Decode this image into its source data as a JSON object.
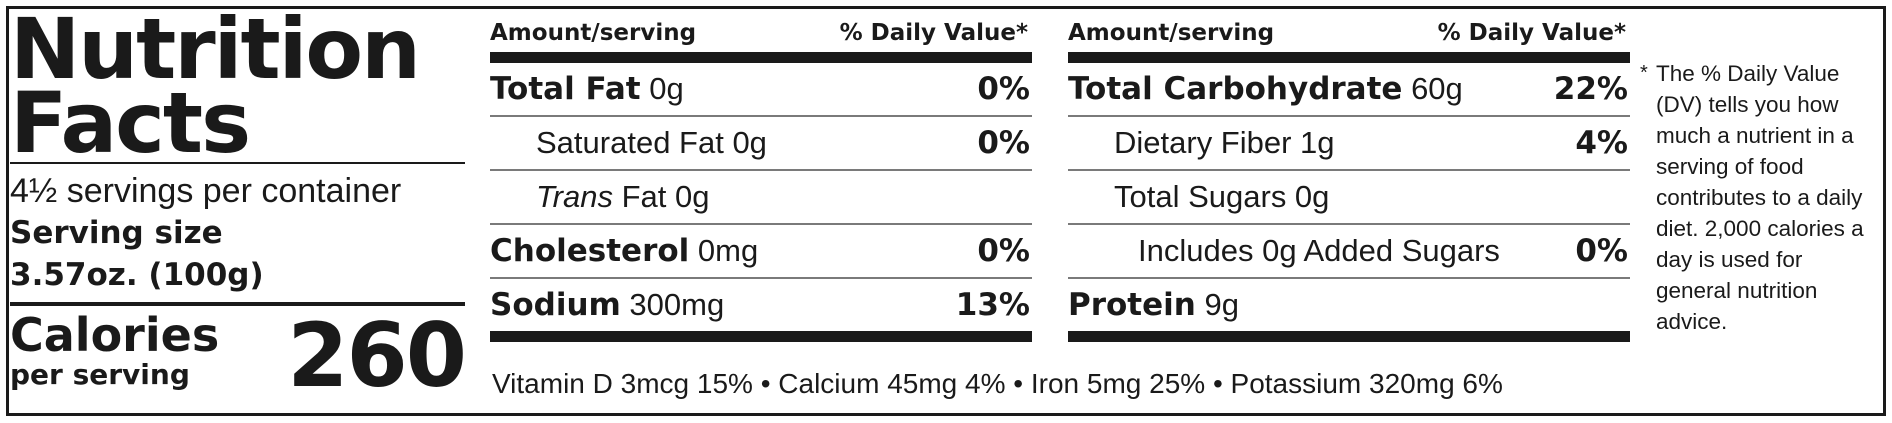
{
  "header": {
    "title_line1": "Nutrition",
    "title_line2": "Facts",
    "servings_per_container": "4½ servings per container",
    "serving_size_label": "Serving size",
    "serving_size_value": "3.57oz. (100g)",
    "calories_label": "Calories",
    "calories_sub": "per serving",
    "calories_value": "260"
  },
  "columns": [
    {
      "amount_label": "Amount/serving",
      "dv_label": "% Daily Value*",
      "rows": [
        {
          "name": "Total Fat",
          "amount": " 0g",
          "dv": "0%"
        },
        {
          "name": "Saturated Fat 0g",
          "dv": "0%"
        },
        {
          "name_prefix": "Trans",
          "name": " Fat 0g",
          "dv": ""
        },
        {
          "name": "Cholesterol",
          "amount": " 0mg",
          "dv": "0%"
        },
        {
          "name": "Sodium",
          "amount": " 300mg",
          "dv": "13%"
        }
      ]
    },
    {
      "amount_label": "Amount/serving",
      "dv_label": "% Daily Value*",
      "rows": [
        {
          "name": "Total Carbohydrate",
          "amount": " 60g",
          "dv": "22%"
        },
        {
          "name": "Dietary Fiber 1g",
          "dv": "4%"
        },
        {
          "name": "Total Sugars 0g",
          "dv": ""
        },
        {
          "name": "Includes 0g Added Sugars",
          "dv": "0%"
        },
        {
          "name": "Protein",
          "amount": " 9g",
          "dv": ""
        }
      ]
    }
  ],
  "vitamins_line": "Vitamin D 3mcg 15% • Calcium 45mg 4% • Iron 5mg 25% • Potassium 320mg 6%",
  "footnote": {
    "star": "*",
    "text": "The % Daily Value (DV) tells you how much a nutrient in a serving of food contributes to a daily diet. 2,000 calories a day is used for general nutrition advice."
  }
}
